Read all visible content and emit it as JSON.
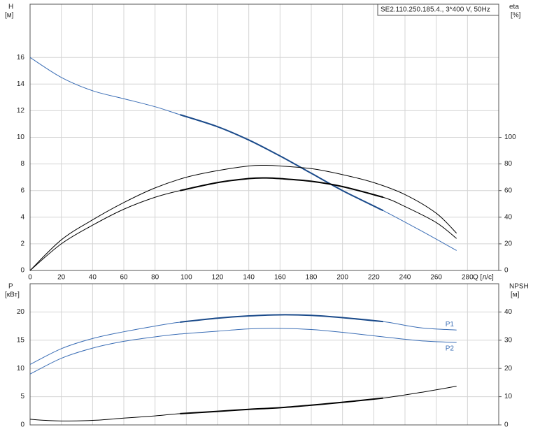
{
  "chart_data": [
    {
      "type": "line",
      "title": "SE2.110.250.185.4., 3*400 V, 50Hz",
      "ylabel": "H",
      "yunit": "[м]",
      "y2label": "eta",
      "y2unit": "[%]",
      "xlabel": "Q [л/с]",
      "xlim": [
        0,
        300
      ],
      "xticks": [
        0,
        20,
        40,
        60,
        80,
        100,
        120,
        140,
        160,
        180,
        200,
        220,
        240,
        260,
        280
      ],
      "show_xtick_labels": true,
      "ylim": [
        0,
        20
      ],
      "yticks": [
        0,
        2,
        4,
        6,
        8,
        10,
        12,
        14,
        16
      ],
      "y2lim": [
        0,
        200
      ],
      "y2ticks": [
        0,
        20,
        40,
        60,
        80,
        100
      ],
      "grid": true,
      "series": [
        {
          "color": "#3a6db5",
          "width": 1,
          "x": [
            0,
            20,
            40,
            60,
            80,
            96,
            120,
            140,
            160,
            180,
            200,
            226,
            250,
            273
          ],
          "values": [
            16,
            14.5,
            13.5,
            12.9,
            12.3,
            11.7,
            10.8,
            9.8,
            8.6,
            7.3,
            6.0,
            4.5,
            3.0,
            1.5
          ]
        },
        {
          "color": "#1a4a8a",
          "width": 2,
          "x": [
            96,
            120,
            140,
            160,
            180,
            200,
            226
          ],
          "values": [
            11.7,
            10.8,
            9.8,
            8.6,
            7.3,
            6.0,
            4.5
          ]
        },
        {
          "color": "#000000",
          "width": 1,
          "axis": "y2",
          "x": [
            0,
            20,
            40,
            60,
            80,
            100,
            120,
            140,
            150,
            160,
            180,
            200,
            220,
            240,
            260,
            273
          ],
          "values": [
            0,
            23,
            38,
            51,
            62,
            70,
            75,
            78.5,
            79,
            78.5,
            76.5,
            72,
            66,
            57,
            43,
            28
          ]
        },
        {
          "color": "#000000",
          "width": 1,
          "axis": "y2",
          "x": [
            0,
            20,
            40,
            60,
            80,
            96,
            120,
            140,
            150,
            160,
            180,
            200,
            226,
            240,
            260,
            273
          ],
          "values": [
            0,
            20,
            34,
            46,
            55,
            60,
            66,
            69,
            69.5,
            69,
            67,
            63,
            55,
            48,
            36,
            24
          ]
        },
        {
          "color": "#000000",
          "width": 2,
          "axis": "y2",
          "x": [
            96,
            120,
            140,
            150,
            160,
            180,
            200,
            226
          ],
          "values": [
            60,
            66,
            69,
            69.5,
            69,
            67,
            63,
            55
          ]
        }
      ]
    },
    {
      "type": "line",
      "ylabel": "P",
      "yunit": "[кВт]",
      "y2label": "NPSH",
      "y2unit": "[м]",
      "xlim": [
        0,
        300
      ],
      "xticks": [
        0,
        20,
        40,
        60,
        80,
        100,
        120,
        140,
        160,
        180,
        200,
        220,
        240,
        260,
        280
      ],
      "show_xtick_labels": false,
      "ylim": [
        0,
        25
      ],
      "yticks": [
        0,
        5,
        10,
        15,
        20
      ],
      "y2lim": [
        0,
        50
      ],
      "y2ticks": [
        0,
        10,
        20,
        30,
        40
      ],
      "grid": true,
      "series": [
        {
          "name": "P1",
          "color": "#3a6db5",
          "width": 1,
          "x": [
            0,
            20,
            40,
            60,
            80,
            96,
            120,
            140,
            160,
            180,
            200,
            226,
            250,
            273
          ],
          "values": [
            10.7,
            13.5,
            15.3,
            16.5,
            17.5,
            18.2,
            18.9,
            19.3,
            19.5,
            19.4,
            19.0,
            18.3,
            17.2,
            16.8
          ]
        },
        {
          "color": "#1a4a8a",
          "width": 2,
          "x": [
            96,
            120,
            140,
            160,
            180,
            200,
            226
          ],
          "values": [
            18.2,
            18.9,
            19.3,
            19.5,
            19.4,
            19.0,
            18.3
          ]
        },
        {
          "name": "P2",
          "color": "#3a6db5",
          "width": 1,
          "x": [
            0,
            20,
            40,
            60,
            80,
            96,
            120,
            140,
            160,
            180,
            200,
            226,
            250,
            273
          ],
          "values": [
            9,
            11.8,
            13.6,
            14.8,
            15.6,
            16.1,
            16.6,
            17.0,
            17.1,
            16.9,
            16.4,
            15.6,
            14.9,
            14.6
          ]
        },
        {
          "color": "#000000",
          "width": 1,
          "axis": "y2",
          "x": [
            0,
            10,
            20,
            40,
            60,
            80,
            96,
            120,
            140,
            160,
            180,
            200,
            226,
            250,
            273
          ],
          "values": [
            2,
            1.6,
            1.4,
            1.6,
            2.4,
            3.2,
            4,
            4.8,
            5.5,
            6.1,
            7,
            8,
            9.5,
            11.5,
            13.7
          ]
        },
        {
          "color": "#000000",
          "width": 2,
          "axis": "y2",
          "x": [
            96,
            120,
            140,
            160,
            180,
            200,
            226
          ],
          "values": [
            4,
            4.8,
            5.5,
            6.1,
            7,
            8,
            9.5
          ]
        }
      ]
    }
  ]
}
